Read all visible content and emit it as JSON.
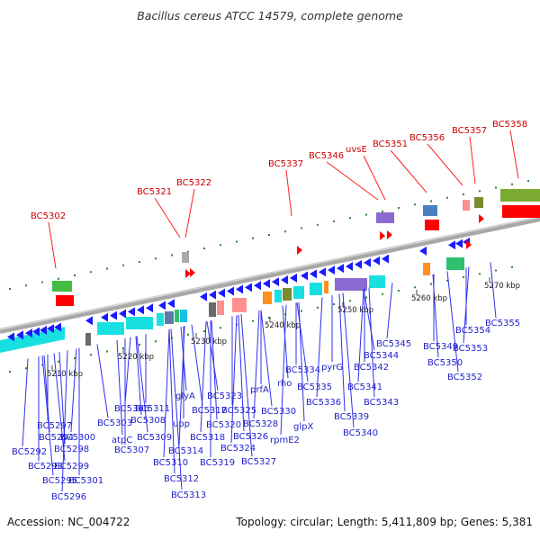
{
  "title": "Bacillus cereus ATCC 14579, complete genome",
  "footer": {
    "accession": "Accession: NC_004722",
    "summary": "Topology: circular; Length: 5,411,809 bp; Genes: 5,381"
  },
  "scale_labels": [
    "5210 kbp",
    "5220 kbp",
    "5230 kbp",
    "5240 kbp",
    "5250 kbp",
    "5260 kbp",
    "5270 kbp"
  ],
  "upper_labels": [
    "BC5302",
    "BC5321",
    "BC5322",
    "BC5337",
    "BC5346",
    "uvsE",
    "BC5351",
    "BC5356",
    "BC5357",
    "BC5358"
  ],
  "lower_labels": [
    "BC5292",
    "BC5293",
    "BC5294",
    "BC5295",
    "BC5296",
    "BC5297",
    "BC5298",
    "BC5299",
    "BC5300",
    "BC5301",
    "atpC",
    "BC5303",
    "BC5306",
    "BC5307",
    "BC5308",
    "BC5309",
    "BC5310",
    "BC5311",
    "BC5312",
    "BC5313",
    "BC5314",
    "upp",
    "glyA",
    "BC5317",
    "BC5318",
    "BC5319",
    "BC5320",
    "BC5323",
    "BC5324",
    "BC5325",
    "BC5326",
    "BC5327",
    "BC5328",
    "prfA",
    "rho",
    "BC5330",
    "rpmE2",
    "BC5334",
    "glpX",
    "BC5335",
    "BC5336",
    "pyrG",
    "BC5339",
    "BC5340",
    "BC5341",
    "BC5342",
    "BC5343",
    "BC5344",
    "BC5345",
    "BC5349",
    "BC5350",
    "BC5352",
    "BC5353",
    "BC5354",
    "BC5355"
  ],
  "colors": {
    "backbone": "#9a9a9a",
    "gene_forward": "#1a1aff",
    "gene_upper": "#ff0000",
    "label_upper": "#cc0000",
    "label_lower": "#1f1fcc",
    "tick": "#2a8a2a"
  }
}
